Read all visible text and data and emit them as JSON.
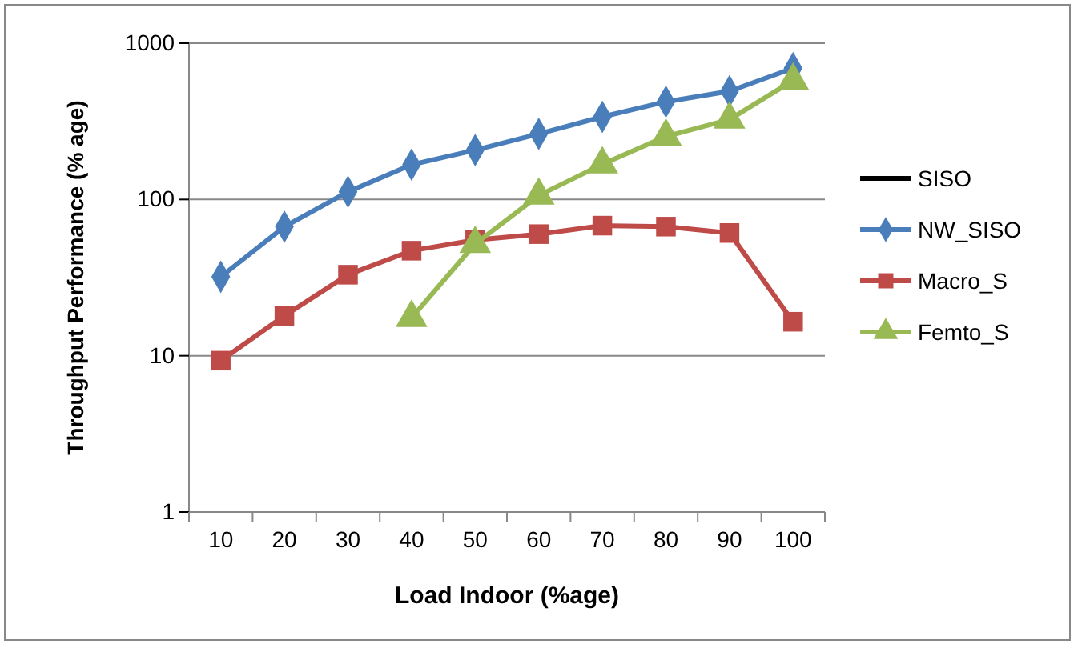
{
  "chart_data": {
    "type": "line",
    "xlabel": "Load Indoor (%age)",
    "ylabel": "Throughput Performance (% age)",
    "categories": [
      "10",
      "20",
      "30",
      "40",
      "50",
      "60",
      "70",
      "80",
      "90",
      "100"
    ],
    "log": "y",
    "ylim": [
      1,
      1000
    ],
    "yticks": [
      1,
      10,
      100,
      1000
    ],
    "grid": "y",
    "legend": "right",
    "series": [
      {
        "name": "SISO",
        "color": "#000000",
        "marker": "none",
        "values": [
          null,
          null,
          null,
          null,
          null,
          null,
          null,
          null,
          null,
          null
        ]
      },
      {
        "name": "NW_SISO",
        "color": "#4a7ebb",
        "marker": "diamond",
        "values": [
          32,
          67,
          112,
          167,
          207,
          263,
          338,
          422,
          493,
          692
        ]
      },
      {
        "name": "Macro_S",
        "color": "#be4b48",
        "marker": "square",
        "values": [
          9.3,
          18,
          33,
          47,
          55,
          60,
          68,
          67,
          61,
          16.5
        ]
      },
      {
        "name": "Femto_S",
        "color": "#98b954",
        "marker": "triangle",
        "values": [
          null,
          null,
          null,
          17.5,
          52,
          106,
          168,
          253,
          325,
          577
        ]
      }
    ]
  }
}
